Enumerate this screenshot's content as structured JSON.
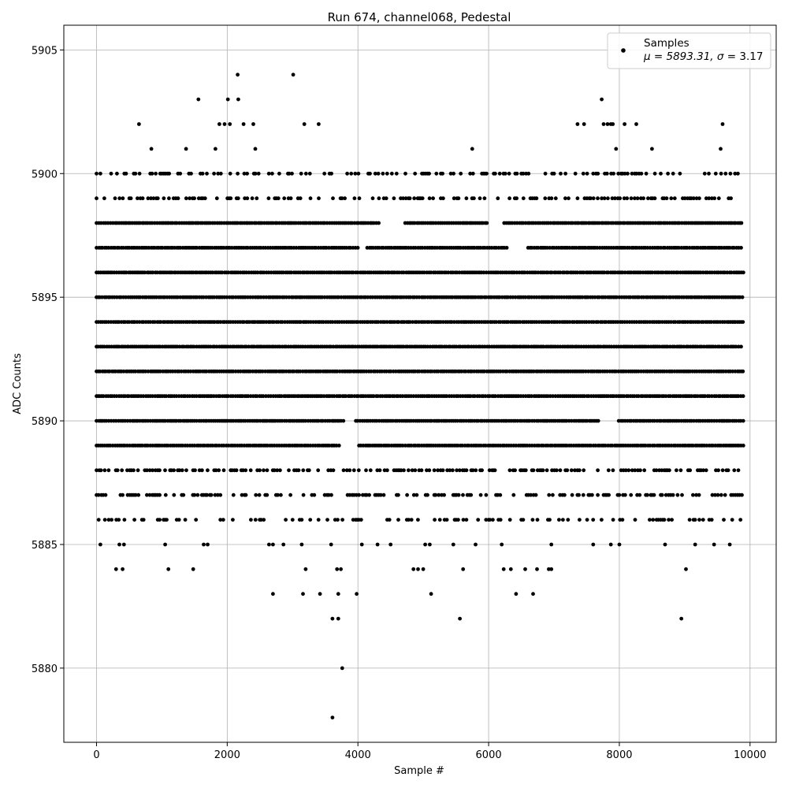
{
  "chart_data": {
    "type": "scatter",
    "title": "Run 674, channel068, Pedestal",
    "xlabel": "Sample #",
    "ylabel": "ADC Counts",
    "xlim": [
      -500,
      10400
    ],
    "ylim": [
      5877,
      5906
    ],
    "xticks": [
      0,
      2000,
      4000,
      6000,
      8000,
      10000
    ],
    "yticks": [
      5880,
      5885,
      5890,
      5895,
      5900,
      5905
    ],
    "grid": true,
    "legend": {
      "placement": "top-right",
      "series_label": "Samples",
      "stats_prefix": "μ = 5893.31, ",
      "stats_sigma_symbol": "σ",
      "stats_sigma_value": " = 3.17"
    },
    "series": [
      {
        "name": "Samples",
        "color": "#000000",
        "samples": 9900,
        "dense_bands": [
          {
            "y": 5889,
            "gaps": [
              [
                3750,
                4000
              ]
            ]
          },
          {
            "y": 5890,
            "gaps": [
              [
                3800,
                3960
              ],
              [
                7700,
                7980
              ]
            ]
          },
          {
            "y": 5891
          },
          {
            "y": 5892
          },
          {
            "y": 5893
          },
          {
            "y": 5894
          },
          {
            "y": 5895
          },
          {
            "y": 5896
          },
          {
            "y": 5897,
            "gaps": [
              [
                4000,
                4120
              ],
              [
                6300,
                6600
              ]
            ]
          },
          {
            "y": 5898,
            "gaps": [
              [
                4350,
                4700
              ],
              [
                6000,
                6200
              ]
            ]
          }
        ],
        "medium_bands": [
          {
            "y": 5887,
            "density": 0.45
          },
          {
            "y": 5888,
            "density": 0.55
          },
          {
            "y": 5899,
            "density": 0.45
          },
          {
            "y": 5900,
            "density": 0.4
          },
          {
            "y": 5886,
            "density": 0.3
          }
        ],
        "outliers": [
          [
            60,
            5885
          ],
          [
            300,
            5884
          ],
          [
            400,
            5884
          ],
          [
            350,
            5885
          ],
          [
            420,
            5885
          ],
          [
            1050,
            5885
          ],
          [
            1100,
            5884
          ],
          [
            1480,
            5884
          ],
          [
            1640,
            5885
          ],
          [
            1700,
            5885
          ],
          [
            2700,
            5883
          ],
          [
            2640,
            5885
          ],
          [
            2700,
            5885
          ],
          [
            2860,
            5885
          ],
          [
            3140,
            5885
          ],
          [
            3160,
            5883
          ],
          [
            3200,
            5884
          ],
          [
            3420,
            5883
          ],
          [
            3590,
            5885
          ],
          [
            3610,
            5882
          ],
          [
            3700,
            5882
          ],
          [
            3700,
            5883
          ],
          [
            3680,
            5884
          ],
          [
            3740,
            5884
          ],
          [
            3760,
            5880
          ],
          [
            3610,
            5878
          ],
          [
            3980,
            5883
          ],
          [
            4060,
            5885
          ],
          [
            4300,
            5885
          ],
          [
            4500,
            5885
          ],
          [
            4850,
            5884
          ],
          [
            4920,
            5884
          ],
          [
            5000,
            5884
          ],
          [
            5030,
            5885
          ],
          [
            5120,
            5883
          ],
          [
            5100,
            5885
          ],
          [
            5460,
            5885
          ],
          [
            5560,
            5882
          ],
          [
            5610,
            5884
          ],
          [
            5800,
            5885
          ],
          [
            6200,
            5885
          ],
          [
            6230,
            5884
          ],
          [
            6340,
            5884
          ],
          [
            6420,
            5883
          ],
          [
            6560,
            5884
          ],
          [
            6680,
            5883
          ],
          [
            6740,
            5884
          ],
          [
            6920,
            5884
          ],
          [
            6960,
            5884
          ],
          [
            6960,
            5885
          ],
          [
            7600,
            5885
          ],
          [
            7870,
            5885
          ],
          [
            8000,
            5885
          ],
          [
            8700,
            5885
          ],
          [
            8950,
            5882
          ],
          [
            9020,
            5884
          ],
          [
            9160,
            5885
          ],
          [
            9450,
            5885
          ],
          [
            9690,
            5885
          ],
          [
            650,
            5902
          ],
          [
            840,
            5901
          ],
          [
            1370,
            5901
          ],
          [
            1560,
            5903
          ],
          [
            1820,
            5901
          ],
          [
            1880,
            5902
          ],
          [
            1960,
            5902
          ],
          [
            2010,
            5903
          ],
          [
            2040,
            5902
          ],
          [
            2160,
            5904
          ],
          [
            2170,
            5903
          ],
          [
            2250,
            5902
          ],
          [
            2400,
            5902
          ],
          [
            2430,
            5901
          ],
          [
            3010,
            5904
          ],
          [
            3180,
            5902
          ],
          [
            3400,
            5902
          ],
          [
            5750,
            5901
          ],
          [
            7360,
            5902
          ],
          [
            7460,
            5902
          ],
          [
            7730,
            5903
          ],
          [
            7760,
            5902
          ],
          [
            7870,
            5902
          ],
          [
            7900,
            5902
          ],
          [
            8080,
            5902
          ],
          [
            8260,
            5902
          ],
          [
            8500,
            5901
          ],
          [
            9550,
            5901
          ],
          [
            9580,
            5902
          ],
          [
            7820,
            5902
          ],
          [
            7950,
            5901
          ]
        ]
      }
    ]
  }
}
